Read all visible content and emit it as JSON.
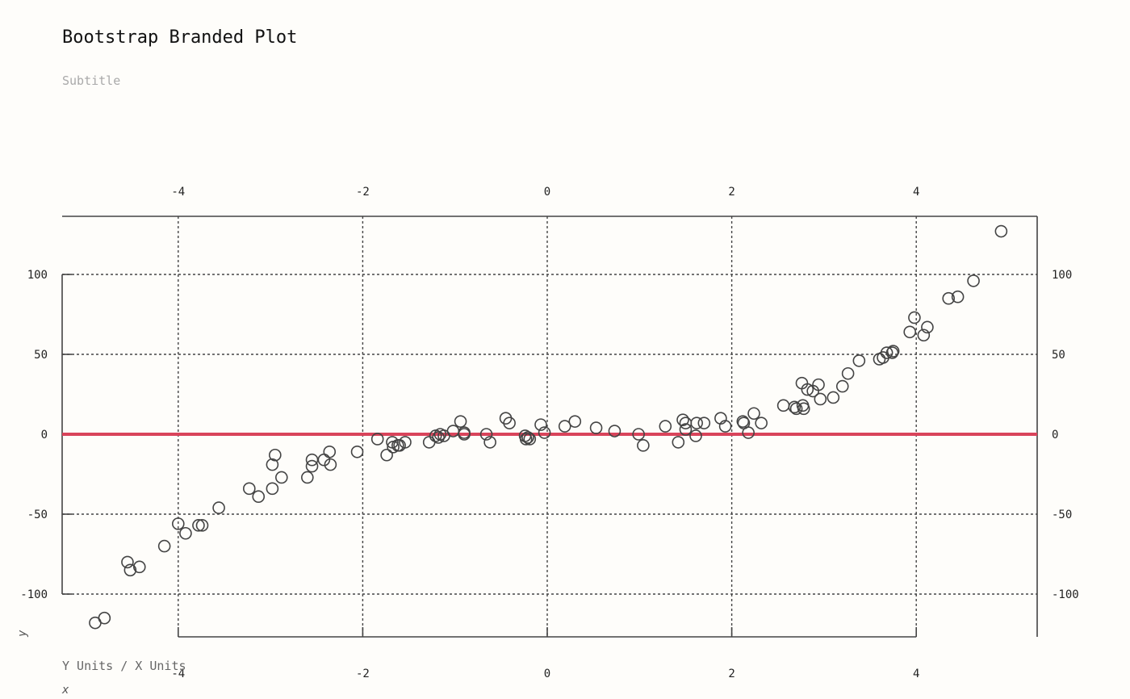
{
  "title": "Bootstrap Branded Plot",
  "subtitle": "Subtitle",
  "colors": {
    "background": "#fefdfa",
    "point_stroke": "#444444",
    "reference_line": "#d9445b",
    "grid": "#444444",
    "frame": "#444444"
  },
  "chart_data": {
    "type": "scatter",
    "title": "Bootstrap Branded Plot",
    "subtitle": "Subtitle",
    "xlabel": "x",
    "ylabel": "y",
    "units_label": "Y Units / X Units",
    "xlim": [
      -5.0,
      5.3
    ],
    "ylim": [
      -117,
      137
    ],
    "x_ticks": [
      -4,
      -2,
      0,
      2,
      4
    ],
    "y_ticks": [
      -100,
      -50,
      0,
      50,
      100
    ],
    "x_tick_labels": [
      "-4",
      "-2",
      "0",
      "2",
      "4"
    ],
    "y_tick_labels": [
      "-100",
      "-50",
      "0",
      "50",
      "100"
    ],
    "grid": true,
    "reference_line_y": 0,
    "points": [
      {
        "x": -4.9,
        "y": -118
      },
      {
        "x": -4.8,
        "y": -115
      },
      {
        "x": -4.55,
        "y": -80
      },
      {
        "x": -4.52,
        "y": -85
      },
      {
        "x": -4.42,
        "y": -83
      },
      {
        "x": -4.15,
        "y": -70
      },
      {
        "x": -4.0,
        "y": -56
      },
      {
        "x": -3.92,
        "y": -62
      },
      {
        "x": -3.78,
        "y": -57
      },
      {
        "x": -3.74,
        "y": -57
      },
      {
        "x": -3.56,
        "y": -46
      },
      {
        "x": -3.23,
        "y": -34
      },
      {
        "x": -3.13,
        "y": -39
      },
      {
        "x": -2.98,
        "y": -34
      },
      {
        "x": -2.98,
        "y": -19
      },
      {
        "x": -2.95,
        "y": -13
      },
      {
        "x": -2.88,
        "y": -27
      },
      {
        "x": -2.6,
        "y": -27
      },
      {
        "x": -2.55,
        "y": -16
      },
      {
        "x": -2.55,
        "y": -20
      },
      {
        "x": -2.42,
        "y": -16
      },
      {
        "x": -2.36,
        "y": -11
      },
      {
        "x": -2.35,
        "y": -19
      },
      {
        "x": -2.06,
        "y": -11
      },
      {
        "x": -1.84,
        "y": -3
      },
      {
        "x": -1.74,
        "y": -13
      },
      {
        "x": -1.68,
        "y": -5
      },
      {
        "x": -1.67,
        "y": -8
      },
      {
        "x": -1.62,
        "y": -7
      },
      {
        "x": -1.6,
        "y": -7
      },
      {
        "x": -1.54,
        "y": -5
      },
      {
        "x": -1.28,
        "y": -5
      },
      {
        "x": -1.21,
        "y": -1
      },
      {
        "x": -1.18,
        "y": -2
      },
      {
        "x": -1.16,
        "y": 0
      },
      {
        "x": -1.12,
        "y": -1
      },
      {
        "x": -1.02,
        "y": 2
      },
      {
        "x": -0.94,
        "y": 8
      },
      {
        "x": -0.9,
        "y": 0
      },
      {
        "x": -0.9,
        "y": 1
      },
      {
        "x": -0.66,
        "y": 0
      },
      {
        "x": -0.62,
        "y": -5
      },
      {
        "x": -0.45,
        "y": 10
      },
      {
        "x": -0.41,
        "y": 7
      },
      {
        "x": -0.24,
        "y": -1
      },
      {
        "x": -0.23,
        "y": -3
      },
      {
        "x": -0.21,
        "y": -2
      },
      {
        "x": -0.19,
        "y": -3
      },
      {
        "x": -0.07,
        "y": 6
      },
      {
        "x": -0.03,
        "y": 1
      },
      {
        "x": 0.19,
        "y": 5
      },
      {
        "x": 0.3,
        "y": 8
      },
      {
        "x": 0.53,
        "y": 4
      },
      {
        "x": 0.73,
        "y": 2
      },
      {
        "x": 0.99,
        "y": 0
      },
      {
        "x": 1.04,
        "y": -7
      },
      {
        "x": 1.28,
        "y": 5
      },
      {
        "x": 1.42,
        "y": -5
      },
      {
        "x": 1.47,
        "y": 9
      },
      {
        "x": 1.5,
        "y": 7
      },
      {
        "x": 1.5,
        "y": 3
      },
      {
        "x": 1.61,
        "y": -1
      },
      {
        "x": 1.62,
        "y": 7
      },
      {
        "x": 1.7,
        "y": 7
      },
      {
        "x": 1.88,
        "y": 10
      },
      {
        "x": 1.93,
        "y": 5
      },
      {
        "x": 2.12,
        "y": 8
      },
      {
        "x": 2.13,
        "y": 7
      },
      {
        "x": 2.18,
        "y": 1
      },
      {
        "x": 2.24,
        "y": 13
      },
      {
        "x": 2.32,
        "y": 7
      },
      {
        "x": 2.56,
        "y": 18
      },
      {
        "x": 2.68,
        "y": 17
      },
      {
        "x": 2.7,
        "y": 16
      },
      {
        "x": 2.76,
        "y": 32
      },
      {
        "x": 2.77,
        "y": 18
      },
      {
        "x": 2.78,
        "y": 16
      },
      {
        "x": 2.82,
        "y": 28
      },
      {
        "x": 2.88,
        "y": 27
      },
      {
        "x": 2.94,
        "y": 31
      },
      {
        "x": 2.96,
        "y": 22
      },
      {
        "x": 3.1,
        "y": 23
      },
      {
        "x": 3.2,
        "y": 30
      },
      {
        "x": 3.26,
        "y": 38
      },
      {
        "x": 3.38,
        "y": 46
      },
      {
        "x": 3.6,
        "y": 47
      },
      {
        "x": 3.64,
        "y": 48
      },
      {
        "x": 3.68,
        "y": 51
      },
      {
        "x": 3.74,
        "y": 51
      },
      {
        "x": 3.75,
        "y": 52
      },
      {
        "x": 3.93,
        "y": 64
      },
      {
        "x": 3.98,
        "y": 73
      },
      {
        "x": 4.08,
        "y": 62
      },
      {
        "x": 4.12,
        "y": 67
      },
      {
        "x": 4.35,
        "y": 85
      },
      {
        "x": 4.45,
        "y": 86
      },
      {
        "x": 4.62,
        "y": 96
      },
      {
        "x": 4.92,
        "y": 127
      }
    ]
  }
}
